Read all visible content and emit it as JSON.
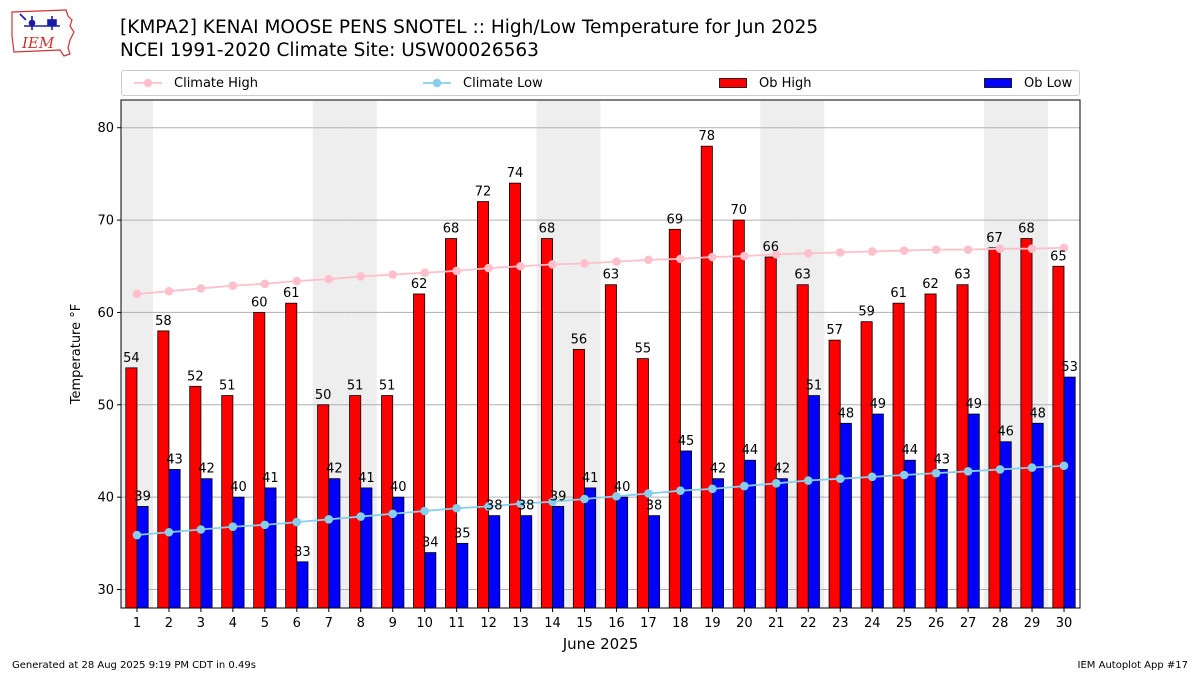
{
  "title": "[KMPA2] KENAI MOOSE PENS SNOTEL :: High/Low Temperature for Jun 2025",
  "subtitle": "NCEI 1991-2020 Climate Site: USW00026563",
  "logo": {
    "text": "IEM",
    "icon": "iowa-state-map-logo"
  },
  "legend": {
    "climate_high": "Climate High",
    "climate_low": "Climate Low",
    "ob_high": "Ob High",
    "ob_low": "Ob Low"
  },
  "colors": {
    "ob_high": "#ff0000",
    "ob_low": "#0000ff",
    "climate_high": "#ffc0cb",
    "climate_low": "#87ceeb",
    "weekend_band": "#eeeeee",
    "grid": "#b0b0b0"
  },
  "chart_data": {
    "type": "bar",
    "xlabel": "June 2025",
    "ylabel": "Temperature °F",
    "ylim": [
      28,
      83
    ],
    "yticks": [
      30,
      40,
      50,
      60,
      70,
      80
    ],
    "grid": "horizontal",
    "legend_position": "top",
    "weekend_days": [
      1,
      7,
      8,
      14,
      15,
      21,
      22,
      28,
      29
    ],
    "categories": [
      "1",
      "2",
      "3",
      "4",
      "5",
      "6",
      "7",
      "8",
      "9",
      "10",
      "11",
      "12",
      "13",
      "14",
      "15",
      "16",
      "17",
      "18",
      "19",
      "20",
      "21",
      "22",
      "23",
      "24",
      "25",
      "26",
      "27",
      "28",
      "29",
      "30"
    ],
    "series": [
      {
        "name": "Ob High",
        "kind": "bar",
        "values": [
          54,
          58,
          52,
          51,
          60,
          61,
          50,
          51,
          51,
          62,
          68,
          72,
          74,
          68,
          56,
          63,
          55,
          69,
          78,
          70,
          66,
          63,
          57,
          59,
          61,
          62,
          63,
          67,
          68,
          65
        ]
      },
      {
        "name": "Ob Low",
        "kind": "bar",
        "values": [
          39,
          43,
          42,
          40,
          41,
          33,
          42,
          41,
          40,
          34,
          35,
          38,
          38,
          39,
          41,
          40,
          38,
          45,
          42,
          44,
          42,
          51,
          48,
          49,
          44,
          43,
          49,
          46,
          48,
          53
        ]
      },
      {
        "name": "Climate High",
        "kind": "line",
        "values": [
          62.0,
          62.3,
          62.6,
          62.9,
          63.1,
          63.4,
          63.6,
          63.9,
          64.1,
          64.3,
          64.5,
          64.8,
          65.0,
          65.2,
          65.3,
          65.5,
          65.7,
          65.8,
          66.0,
          66.1,
          66.3,
          66.4,
          66.5,
          66.6,
          66.7,
          66.8,
          66.8,
          66.9,
          66.9,
          67.0
        ]
      },
      {
        "name": "Climate Low",
        "kind": "line",
        "values": [
          35.9,
          36.2,
          36.5,
          36.8,
          37.0,
          37.3,
          37.6,
          37.9,
          38.2,
          38.5,
          38.8,
          39.0,
          39.3,
          39.5,
          39.8,
          40.1,
          40.4,
          40.7,
          40.9,
          41.2,
          41.5,
          41.8,
          42.0,
          42.2,
          42.4,
          42.6,
          42.8,
          43.0,
          43.2,
          43.4
        ]
      }
    ]
  },
  "footer": {
    "left": "Generated at 28 Aug 2025 9:19 PM CDT in 0.49s",
    "right": "IEM Autoplot App #17"
  }
}
